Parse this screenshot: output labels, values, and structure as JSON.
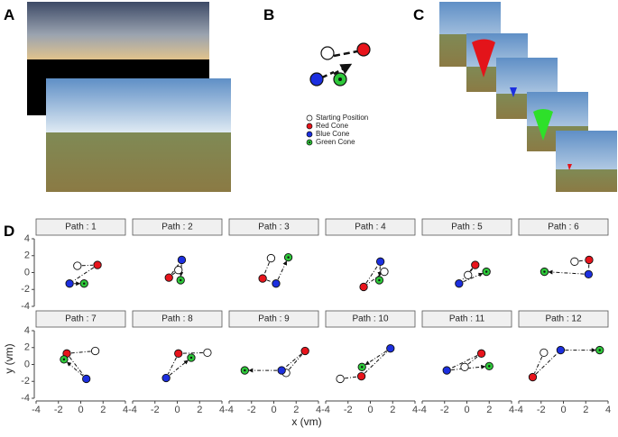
{
  "panel_labels": [
    "A",
    "B",
    "C",
    "D"
  ],
  "legend": {
    "items": [
      {
        "label": "Starting Position",
        "color": "#ffffff"
      },
      {
        "label": "Red Cone",
        "color": "#e8141c"
      },
      {
        "label": "Blue Cone",
        "color": "#1c2fe0"
      },
      {
        "label": "Green Cone",
        "color": "#2ec83a"
      }
    ]
  },
  "axis_labels": {
    "x": "x (vm)",
    "y": "y (vm)"
  },
  "chart_data": [
    {
      "type": "scatter",
      "title": "Path : 1",
      "x": [
        -0.3,
        1.5,
        -1,
        0.3
      ],
      "y": [
        0.8,
        0.9,
        -1.3,
        -1.3
      ],
      "xlim": [
        -4,
        4
      ],
      "ylim": [
        -4,
        4
      ],
      "xticks": [
        -4,
        -2,
        0,
        2,
        4
      ],
      "yticks": [
        -4,
        -2,
        0,
        2,
        4
      ]
    },
    {
      "type": "scatter",
      "title": "Path : 2",
      "x": [
        0.1,
        -0.75,
        0.4,
        0.3
      ],
      "y": [
        0.3,
        -0.6,
        1.5,
        -0.9
      ],
      "xlim": [
        -4,
        4
      ],
      "ylim": [
        -4,
        4
      ],
      "xticks": [
        -4,
        -2,
        0,
        2,
        4
      ],
      "yticks": [
        -4,
        -2,
        0,
        2,
        4
      ]
    },
    {
      "type": "scatter",
      "title": "Path : 3",
      "x": [
        -0.25,
        -1,
        0.2,
        1.3
      ],
      "y": [
        1.7,
        -0.7,
        -1.3,
        1.8
      ],
      "xlim": [
        -4,
        4
      ],
      "ylim": [
        -4,
        4
      ],
      "xticks": [
        -4,
        -2,
        0,
        2,
        4
      ],
      "yticks": [
        -4,
        -2,
        0,
        2,
        4
      ]
    },
    {
      "type": "scatter",
      "title": "Path : 4",
      "x": [
        1.25,
        -0.6,
        0.9,
        0.8
      ],
      "y": [
        0.1,
        -1.7,
        1.3,
        -0.9
      ],
      "xlim": [
        -4,
        4
      ],
      "ylim": [
        -4,
        4
      ],
      "xticks": [
        -4,
        -2,
        0,
        2,
        4
      ],
      "yticks": [
        -4,
        -2,
        0,
        2,
        4
      ]
    },
    {
      "type": "scatter",
      "title": "Path : 5",
      "x": [
        0.1,
        0.75,
        -0.7,
        1.75
      ],
      "y": [
        -0.3,
        0.9,
        -1.3,
        0.1
      ],
      "xlim": [
        -4,
        4
      ],
      "ylim": [
        -4,
        4
      ],
      "xticks": [
        -4,
        -2,
        0,
        2,
        4
      ],
      "yticks": [
        -4,
        -2,
        0,
        2,
        4
      ]
    },
    {
      "type": "scatter",
      "title": "Path : 6",
      "x": [
        1,
        2.3,
        2.25,
        -1.7
      ],
      "y": [
        1.3,
        1.5,
        -0.2,
        0.1
      ],
      "xlim": [
        -4,
        4
      ],
      "ylim": [
        -4,
        4
      ],
      "xticks": [
        -4,
        -2,
        0,
        2,
        4
      ],
      "yticks": [
        -4,
        -2,
        0,
        2,
        4
      ]
    },
    {
      "type": "scatter",
      "title": "Path : 7",
      "x": [
        1.3,
        -1.25,
        0.5,
        -1.5
      ],
      "y": [
        1.6,
        1.3,
        -1.7,
        0.6
      ],
      "xlim": [
        -4,
        4
      ],
      "ylim": [
        -4,
        4
      ],
      "xticks": [
        -4,
        -2,
        0,
        2,
        4
      ],
      "yticks": [
        -4,
        -2,
        0,
        2,
        4
      ]
    },
    {
      "type": "scatter",
      "title": "Path : 8",
      "x": [
        2.7,
        0.1,
        -1,
        1.25
      ],
      "y": [
        1.4,
        1.3,
        -1.6,
        0.8
      ],
      "xlim": [
        -4,
        4
      ],
      "ylim": [
        -4,
        4
      ],
      "xticks": [
        -4,
        -2,
        0,
        2,
        4
      ],
      "yticks": [
        -4,
        -2,
        0,
        2,
        4
      ]
    },
    {
      "type": "scatter",
      "title": "Path : 9",
      "x": [
        1.1,
        2.8,
        0.7,
        -2.6
      ],
      "y": [
        -1,
        1.6,
        -0.7,
        -0.7
      ],
      "xlim": [
        -4,
        4
      ],
      "ylim": [
        -4,
        4
      ],
      "xticks": [
        -4,
        -2,
        0,
        2,
        4
      ],
      "yticks": [
        -4,
        -2,
        0,
        2,
        4
      ]
    },
    {
      "type": "scatter",
      "title": "Path : 10",
      "x": [
        -2.7,
        -0.8,
        1.8,
        -0.75
      ],
      "y": [
        -1.7,
        -1.4,
        1.9,
        -0.3
      ],
      "xlim": [
        -4,
        4
      ],
      "ylim": [
        -4,
        4
      ],
      "xticks": [
        -4,
        -2,
        0,
        2,
        4
      ],
      "yticks": [
        -4,
        -2,
        0,
        2,
        4
      ]
    },
    {
      "type": "scatter",
      "title": "Path : 11",
      "x": [
        -0.2,
        1.3,
        -1.8,
        2
      ],
      "y": [
        -0.3,
        1.3,
        -0.7,
        -0.2
      ],
      "xlim": [
        -4,
        4
      ],
      "ylim": [
        -4,
        4
      ],
      "xticks": [
        -4,
        -2,
        0,
        2,
        4
      ],
      "yticks": [
        -4,
        -2,
        0,
        2,
        4
      ]
    },
    {
      "type": "scatter",
      "title": "Path : 12",
      "x": [
        -1.75,
        -2.75,
        -0.25,
        3.25
      ],
      "y": [
        1.4,
        -1.5,
        1.7,
        1.7
      ],
      "xlim": [
        -4,
        4
      ],
      "ylim": [
        -4,
        4
      ],
      "xticks": [
        -4,
        -2,
        0,
        2,
        4
      ],
      "yticks": [
        -4,
        -2,
        0,
        2,
        4
      ]
    }
  ]
}
